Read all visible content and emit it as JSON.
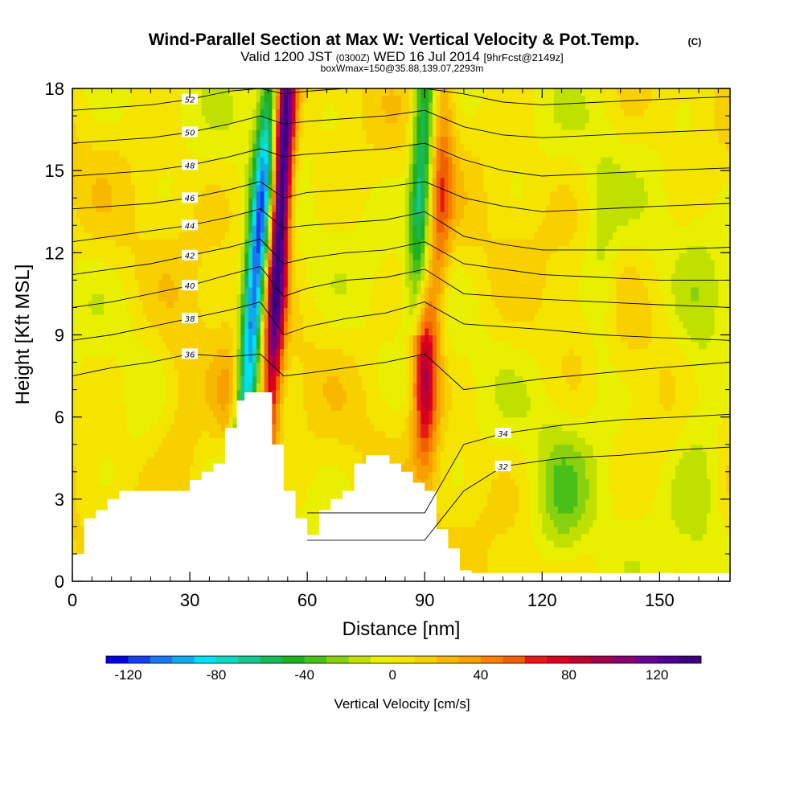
{
  "chart_data": {
    "type": "heatmap",
    "title": "Wind-Parallel Section at Max W: Vertical Velocity & Pot.Temp.",
    "title_mark": "(C)",
    "subtitle": {
      "valid": "Valid 1200 JST",
      "utc": "(0300Z)",
      "date": "WED 16 Jul 2014",
      "fcst": "[9hrFcst@2149z]"
    },
    "box_info": "boxWmax=150@35.88,139.07,2293m",
    "xlabel": "Distance [nm]",
    "ylabel": "Height [Kft MSL]",
    "xlim": [
      0,
      168
    ],
    "ylim": [
      0,
      18
    ],
    "x_ticks": [
      "0",
      "30",
      "60",
      "90",
      "120",
      "150"
    ],
    "x_tick_values": [
      0,
      30,
      60,
      90,
      120,
      150
    ],
    "y_ticks": [
      "0",
      "3",
      "6",
      "9",
      "12",
      "15",
      "18"
    ],
    "y_tick_values": [
      0,
      3,
      6,
      9,
      12,
      15,
      18
    ],
    "colorbar": {
      "label": "Vertical Velocity [cm/s]",
      "tick_labels": [
        "-120",
        "-80",
        "-40",
        "0",
        "40",
        "80",
        "120"
      ],
      "tick_values": [
        -120,
        -80,
        -40,
        0,
        40,
        80,
        120
      ],
      "min": -130,
      "max": 140,
      "step": 10,
      "colors": [
        "#0000e0",
        "#1440f0",
        "#1a78f0",
        "#14a8ec",
        "#00e0f8",
        "#10d8c0",
        "#14c890",
        "#18b858",
        "#20b020",
        "#48c018",
        "#88d010",
        "#c0e000",
        "#e8f000",
        "#f4e400",
        "#f8d000",
        "#f8b800",
        "#f8a000",
        "#f88000",
        "#f06000",
        "#e81818",
        "#d80020",
        "#c00030",
        "#a00050",
        "#880070",
        "#6a0090",
        "#500090",
        "#3c007c"
      ]
    },
    "velocity_features": [
      {
        "kind": "downdraft",
        "x": [
          44,
          52
        ],
        "z": [
          5,
          18
        ],
        "min_value": -110
      },
      {
        "kind": "updraft",
        "x": [
          50,
          57
        ],
        "z": [
          6,
          18
        ],
        "max_value": 140
      },
      {
        "kind": "updraft",
        "x": [
          86,
          95
        ],
        "z": [
          5,
          12
        ],
        "max_value": 80
      },
      {
        "kind": "downdraft",
        "x": [
          85,
          100
        ],
        "z": [
          9,
          18
        ],
        "min_value": -70
      }
    ],
    "terrain": {
      "x": [
        0,
        3,
        6,
        9,
        12,
        15,
        18,
        24,
        27,
        30,
        33,
        36,
        39,
        42,
        44,
        48,
        51,
        54,
        57,
        60,
        63,
        66,
        69,
        72,
        75,
        78,
        81,
        84,
        87,
        90,
        93,
        96,
        99,
        102,
        105,
        168
      ],
      "height": [
        1.0,
        2.3,
        2.6,
        3.0,
        3.3,
        3.3,
        3.3,
        3.3,
        3.3,
        3.7,
        4.0,
        4.3,
        5.6,
        6.6,
        6.9,
        6.9,
        5.0,
        3.3,
        2.3,
        1.7,
        2.6,
        3.0,
        3.3,
        4.3,
        4.6,
        4.6,
        4.3,
        4.0,
        3.6,
        3.3,
        1.9,
        1.2,
        0.4,
        0.3,
        0.3,
        0.3
      ]
    },
    "theta_contours": [
      {
        "value": 32,
        "label": "32",
        "x": [
          60,
          90,
          100,
          110,
          125,
          140,
          155,
          168
        ],
        "z": [
          1.5,
          1.5,
          3.3,
          4.2,
          4.5,
          4.6,
          4.8,
          4.9
        ]
      },
      {
        "value": 34,
        "label": "34",
        "x": [
          60,
          90,
          100,
          110,
          125,
          140,
          155,
          168
        ],
        "z": [
          2.5,
          2.5,
          5.0,
          5.4,
          5.7,
          5.9,
          6.0,
          6.1
        ]
      },
      {
        "value": 36,
        "label": "36",
        "x": [
          0,
          10,
          20,
          30,
          40,
          48,
          54,
          60,
          70,
          80,
          90,
          100,
          110,
          120,
          135,
          150,
          168
        ],
        "z": [
          7.5,
          7.8,
          8.0,
          8.3,
          8.2,
          8.3,
          7.5,
          7.6,
          7.8,
          8.0,
          8.3,
          7.0,
          7.2,
          7.4,
          7.6,
          7.8,
          8.0
        ]
      },
      {
        "value": 38,
        "label": "38",
        "x": [
          0,
          10,
          20,
          30,
          40,
          48,
          54,
          60,
          70,
          80,
          90,
          100,
          110,
          120,
          135,
          150,
          168
        ],
        "z": [
          8.8,
          9.0,
          9.3,
          9.6,
          9.9,
          10.2,
          9.0,
          9.3,
          9.6,
          9.8,
          10.2,
          9.4,
          9.3,
          9.2,
          9.0,
          8.9,
          8.8
        ]
      },
      {
        "value": 40,
        "label": "40",
        "x": [
          0,
          10,
          20,
          30,
          40,
          48,
          54,
          60,
          70,
          80,
          90,
          100,
          110,
          120,
          135,
          150,
          168
        ],
        "z": [
          10.0,
          10.2,
          10.5,
          10.8,
          11.2,
          11.5,
          10.4,
          10.7,
          11.0,
          11.1,
          11.4,
          10.5,
          10.4,
          10.3,
          10.2,
          10.1,
          10.0
        ]
      },
      {
        "value": 42,
        "label": "42",
        "x": [
          0,
          10,
          20,
          30,
          40,
          48,
          54,
          60,
          70,
          80,
          90,
          100,
          110,
          120,
          135,
          150,
          168
        ],
        "z": [
          11.2,
          11.4,
          11.6,
          11.9,
          12.2,
          12.5,
          11.6,
          11.8,
          12.0,
          12.1,
          12.4,
          11.6,
          11.4,
          11.2,
          11.1,
          11.0,
          11.0
        ]
      },
      {
        "value": 44,
        "label": "44",
        "x": [
          0,
          10,
          20,
          30,
          40,
          48,
          54,
          60,
          70,
          80,
          90,
          100,
          110,
          120,
          135,
          150,
          168
        ],
        "z": [
          12.4,
          12.6,
          12.8,
          13.0,
          13.3,
          13.6,
          12.9,
          13.0,
          13.1,
          13.2,
          13.5,
          12.6,
          12.3,
          12.1,
          12.1,
          12.1,
          12.2
        ]
      },
      {
        "value": 46,
        "label": "46",
        "x": [
          0,
          10,
          20,
          30,
          40,
          48,
          54,
          60,
          70,
          80,
          90,
          100,
          110,
          120,
          135,
          150,
          168
        ],
        "z": [
          13.6,
          13.7,
          13.8,
          14.0,
          14.3,
          14.6,
          14.0,
          14.2,
          14.3,
          14.4,
          14.6,
          14.0,
          13.7,
          13.5,
          13.6,
          13.7,
          13.8
        ]
      },
      {
        "value": 48,
        "label": "48",
        "x": [
          0,
          10,
          20,
          30,
          40,
          48,
          54,
          60,
          70,
          80,
          90,
          100,
          110,
          120,
          135,
          150,
          168
        ],
        "z": [
          14.8,
          14.9,
          15.0,
          15.2,
          15.5,
          15.8,
          15.5,
          15.6,
          15.7,
          15.8,
          16.0,
          15.4,
          15.0,
          14.8,
          14.9,
          15.0,
          15.1
        ]
      },
      {
        "value": 50,
        "label": "50",
        "x": [
          0,
          10,
          20,
          30,
          40,
          48,
          54,
          60,
          70,
          80,
          90,
          100,
          110,
          120,
          135,
          150,
          168
        ],
        "z": [
          16.0,
          16.1,
          16.2,
          16.4,
          16.7,
          17.0,
          16.7,
          16.8,
          16.9,
          17.0,
          17.2,
          16.6,
          16.3,
          16.2,
          16.3,
          16.4,
          16.5
        ]
      },
      {
        "value": 52,
        "label": "52",
        "x": [
          0,
          10,
          20,
          30,
          40,
          48,
          54,
          60,
          70,
          80,
          90,
          100,
          110,
          120,
          135,
          150,
          168
        ],
        "z": [
          17.2,
          17.3,
          17.4,
          17.6,
          17.9,
          18.0,
          17.8,
          17.9,
          18.0,
          18.0,
          18.0,
          17.8,
          17.5,
          17.4,
          17.5,
          17.6,
          17.7
        ]
      }
    ],
    "grid": false,
    "legend": "colorbar-bottom"
  }
}
